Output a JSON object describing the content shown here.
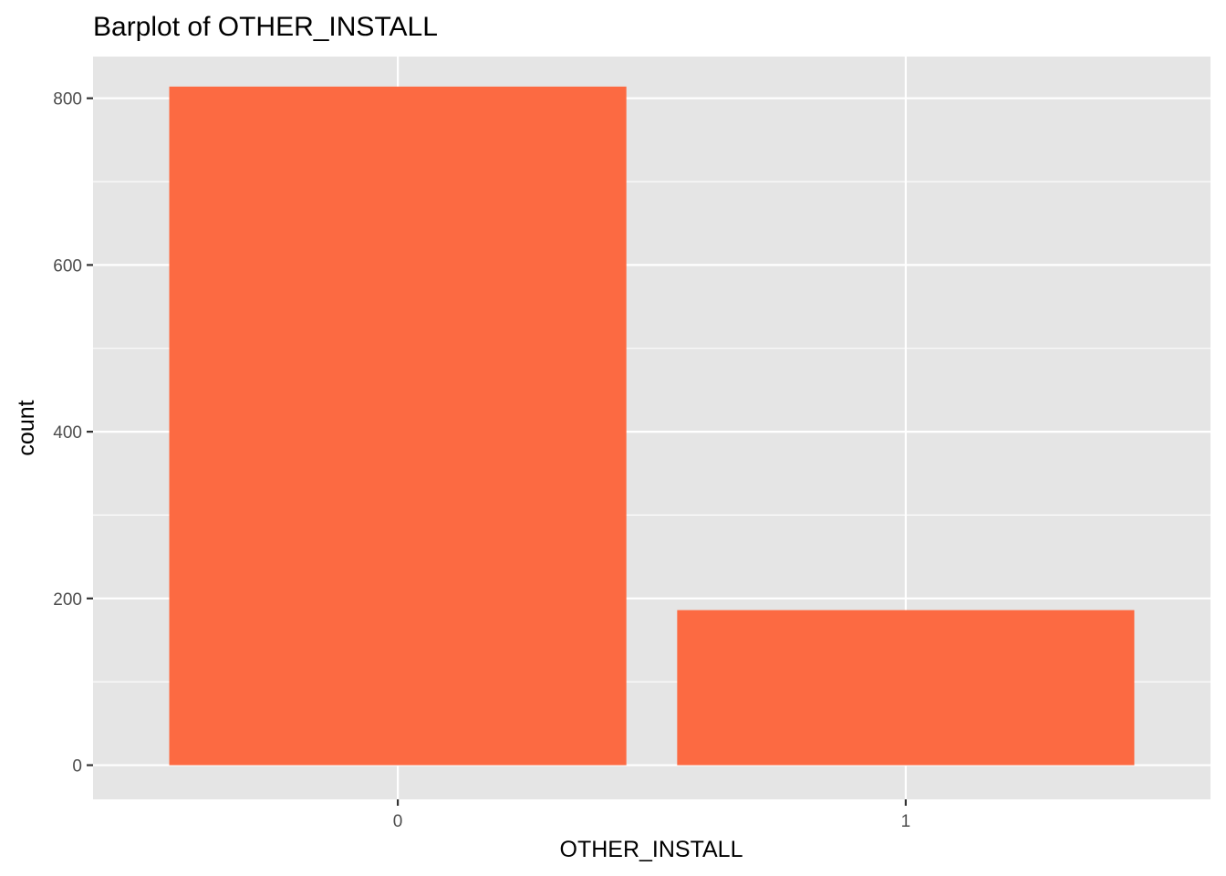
{
  "chart_data": {
    "type": "bar",
    "title": "Barplot of OTHER_INSTALL",
    "xlabel": "OTHER_INSTALL",
    "ylabel": "count",
    "categories": [
      "0",
      "1"
    ],
    "values": [
      814,
      186
    ],
    "ylim": [
      -41,
      850
    ],
    "y_ticks": [
      0,
      200,
      400,
      600,
      800
    ],
    "y_minor_ticks": [
      100,
      300,
      500,
      700
    ],
    "grid": true,
    "legend": "none",
    "colors": {
      "bar": "#FC6A42",
      "panel": "#E5E5E5",
      "grid": "#FFFFFF",
      "tick_text": "#4D4D4D",
      "tick_mark": "#333333"
    }
  }
}
